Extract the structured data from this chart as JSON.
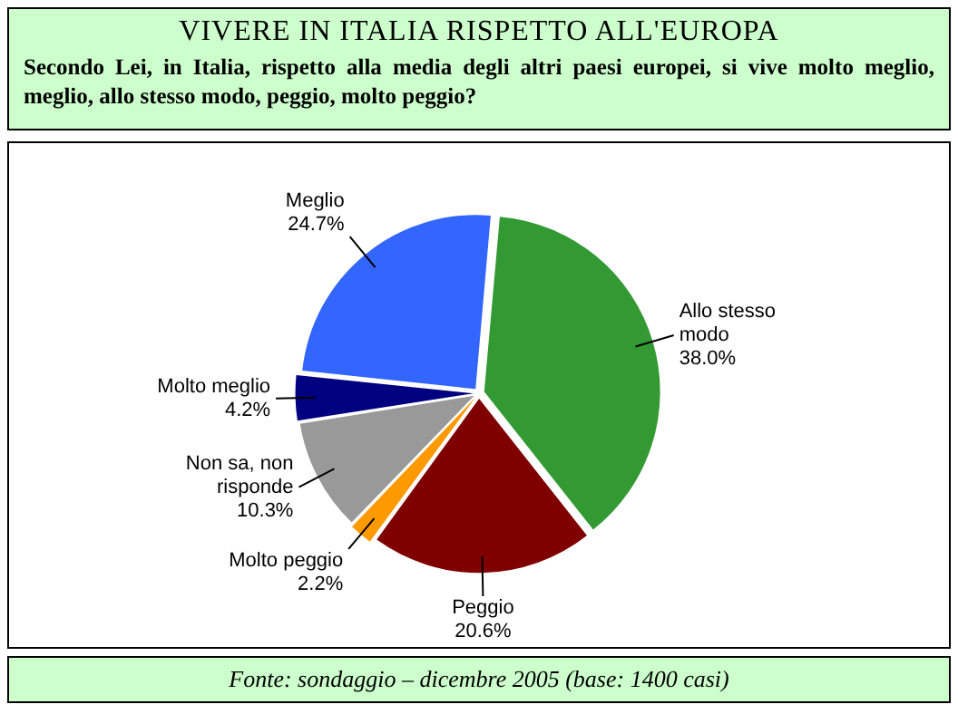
{
  "chart_data": {
    "type": "pie",
    "title": "VIVERE IN ITALIA RISPETTO ALL'EUROPA",
    "subtitle": "Secondo Lei, in Italia, rispetto alla media degli altri paesi europei, si vive molto meglio, meglio, allo stesso modo, peggio, molto peggio?",
    "categories": [
      "Allo stesso modo",
      "Peggio",
      "Molto peggio",
      "Non sa, non risponde",
      "Molto meglio",
      "Meglio"
    ],
    "values": [
      38.0,
      20.6,
      2.2,
      10.3,
      4.2,
      24.7
    ],
    "colors": [
      "#339933",
      "#800000",
      "#ff9900",
      "#999999",
      "#000080",
      "#3366ff"
    ],
    "value_labels": [
      "38.0%",
      "20.6%",
      "2.2%",
      "10.3%",
      "4.2%",
      "24.7%"
    ],
    "legend": false,
    "annotations": [
      "Fonte: sondaggio – dicembre 2005 (base: 1400 casi)"
    ]
  }
}
